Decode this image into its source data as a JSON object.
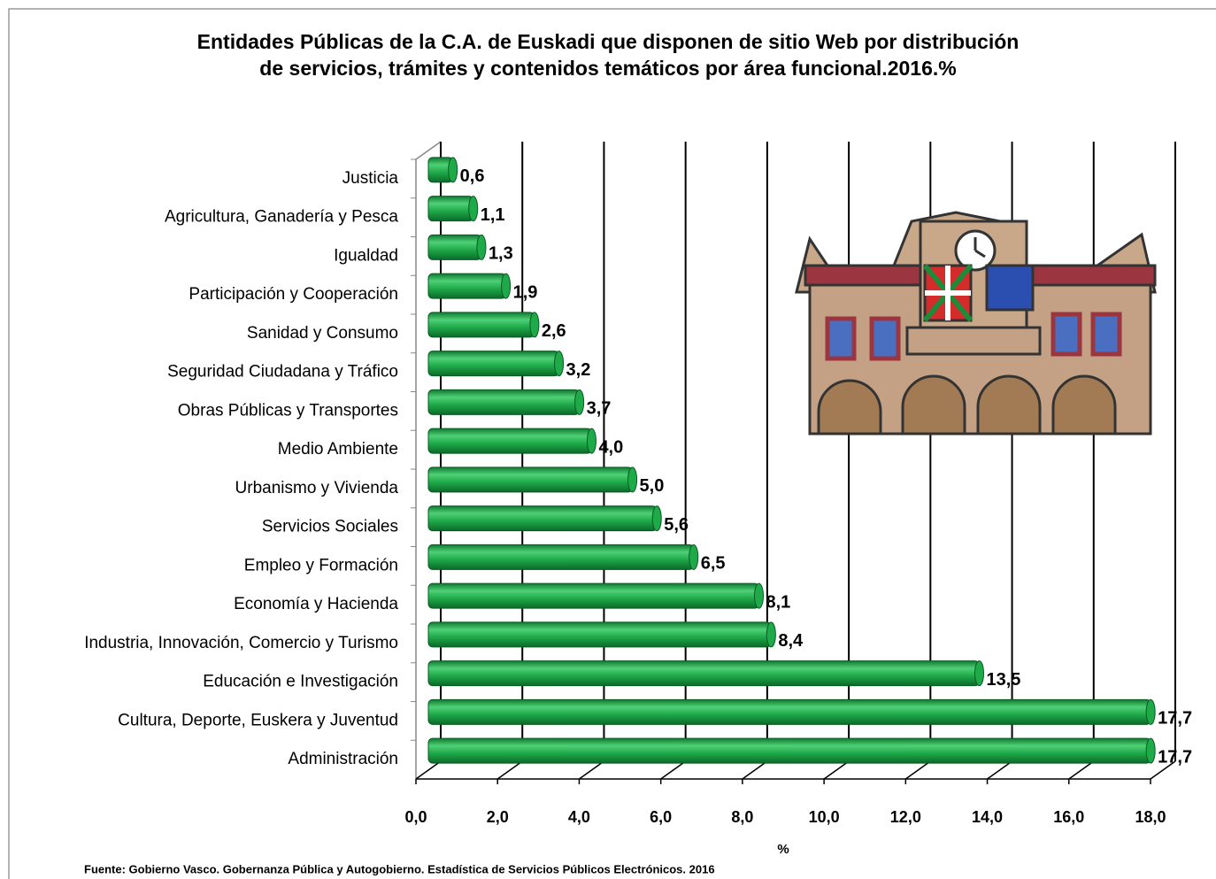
{
  "chart_data": {
    "type": "bar3d",
    "title": "Entidades Públicas de la C.A. de Euskadi que disponen de sitio Web por distribución de servicios, trámites y contenidos temáticos por área funcional.2016.%",
    "categories": [
      "Justicia",
      "Agricultura, Ganadería y Pesca",
      "Igualdad",
      "Participación y Cooperación",
      "Sanidad y Consumo",
      "Seguridad Ciudadana y Tráfico",
      "Obras Públicas y Transportes",
      "Medio Ambiente",
      "Urbanismo y Vivienda",
      "Servicios Sociales",
      "Empleo y Formación",
      "Economía y Hacienda",
      "Industria, Innovación, Comercio y Turismo",
      "Educación e Investigación",
      "Cultura, Deporte, Euskera y Juventud",
      "Administración"
    ],
    "values": [
      0.6,
      1.1,
      1.3,
      1.9,
      2.6,
      3.2,
      3.7,
      4.0,
      5.0,
      5.6,
      6.5,
      8.1,
      8.4,
      13.5,
      17.7,
      17.7
    ],
    "value_labels": [
      "0,6",
      "1,1",
      "1,3",
      "1,9",
      "2,6",
      "3,2",
      "3,7",
      "4,0",
      "5,0",
      "5,6",
      "6,5",
      "8,1",
      "8,4",
      "13,5",
      "17,7",
      "17,7"
    ],
    "color": "#1faa4a",
    "xlim": [
      0,
      18
    ],
    "xticks": [
      {
        "value": 0,
        "label": "0,0"
      },
      {
        "value": 2,
        "label": "2,0"
      },
      {
        "value": 4,
        "label": "4,0"
      },
      {
        "value": 6,
        "label": "6,0"
      },
      {
        "value": 8,
        "label": "8,0"
      },
      {
        "value": 10,
        "label": "10,0"
      },
      {
        "value": 12,
        "label": "12,0"
      },
      {
        "value": 14,
        "label": "14,0"
      },
      {
        "value": 16,
        "label": "16,0"
      },
      {
        "value": 18,
        "label": "18,0"
      }
    ],
    "xlabel": "%",
    "grid": true,
    "source": "Fuente: Gobierno Vasco. Gobernanza Pública y Autogobierno. Estadística de Servicios Públicos Electrónicos. 2016"
  }
}
